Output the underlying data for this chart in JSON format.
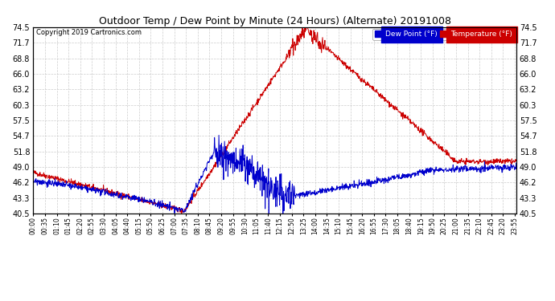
{
  "title": "Outdoor Temp / Dew Point by Minute (24 Hours) (Alternate) 20191008",
  "copyright": "Copyright 2019 Cartronics.com",
  "legend_dew": "Dew Point (°F)",
  "legend_temp": "Temperature (°F)",
  "y_ticks": [
    40.5,
    43.3,
    46.2,
    49.0,
    51.8,
    54.7,
    57.5,
    60.3,
    63.2,
    66.0,
    68.8,
    71.7,
    74.5
  ],
  "ylim": [
    40.5,
    74.5
  ],
  "bg_color": "#ffffff",
  "plot_bg_color": "#ffffff",
  "grid_color": "#cccccc",
  "temp_color": "#cc0000",
  "dew_color": "#0000cc",
  "x_tick_step_minutes": 35
}
